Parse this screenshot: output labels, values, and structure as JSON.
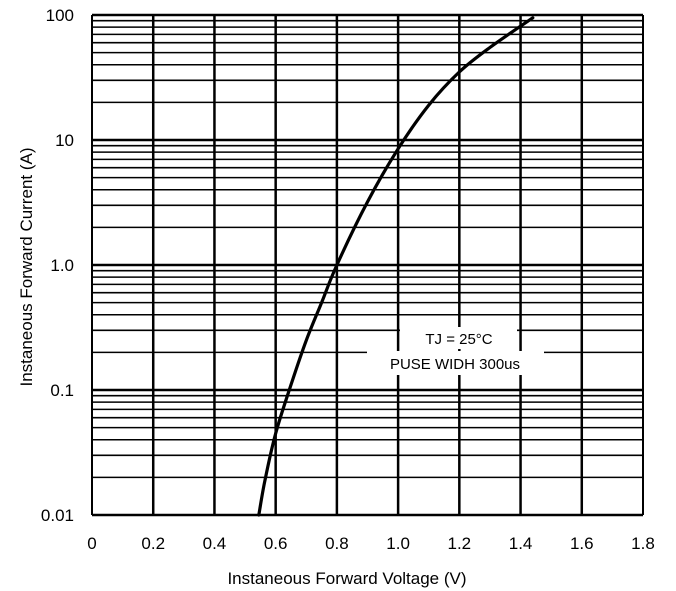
{
  "chart_data": {
    "type": "line",
    "title": "",
    "xlabel": "Instaneous Forward Voltage (V)",
    "ylabel": "Instaneous Forward Current (A)",
    "xlim": [
      0,
      1.8
    ],
    "ylim": [
      0.01,
      100
    ],
    "y_scale": "log",
    "grid": true,
    "x_ticks": [
      "0",
      "0.2",
      "0.4",
      "0.6",
      "0.8",
      "1.0",
      "1.2",
      "1.4",
      "1.6",
      "1.8"
    ],
    "y_ticks": [
      "0.01",
      "0.1",
      "1.0",
      "10",
      "100"
    ],
    "series": [
      {
        "x": [
          0.545,
          0.565,
          0.6,
          0.65,
          0.7,
          0.75,
          0.8,
          0.9,
          1.0,
          1.1,
          1.2,
          1.3,
          1.44
        ],
        "y": [
          0.01,
          0.019,
          0.045,
          0.11,
          0.25,
          0.5,
          1.0,
          3.2,
          8.5,
          19,
          35,
          55,
          95
        ]
      }
    ],
    "annotations": [
      "TJ = 25°C",
      "PUSE WIDH 300us"
    ],
    "colors": {
      "line": "#000000",
      "grid": "#000000",
      "background": "#ffffff"
    }
  }
}
